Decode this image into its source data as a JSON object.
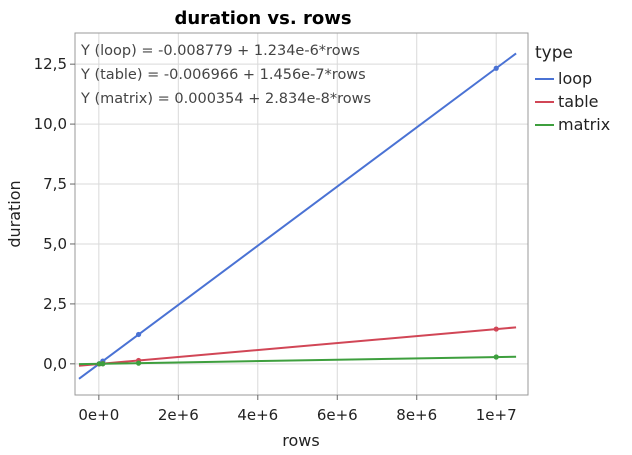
{
  "chart_data": {
    "type": "scatter",
    "title": "duration vs. rows",
    "xlabel": "rows",
    "ylabel": "duration",
    "xlim": [
      -600000,
      10800000
    ],
    "ylim": [
      -1.3,
      13.8
    ],
    "x_ticks": [
      0,
      2000000,
      4000000,
      6000000,
      8000000,
      10000000
    ],
    "x_tick_labels": [
      "0e+0",
      "2e+6",
      "4e+6",
      "6e+6",
      "8e+6",
      "1e+7"
    ],
    "y_ticks": [
      0,
      2.5,
      5,
      7.5,
      10,
      12.5
    ],
    "y_tick_labels": [
      "0,0",
      "2,5",
      "5,0",
      "7,5",
      "10,0",
      "12,5"
    ],
    "grid": true,
    "legend": {
      "title": "type",
      "position": "right"
    },
    "fit_range": [
      -500000,
      10500000
    ],
    "series": [
      {
        "name": "loop",
        "color": "#4a72d4",
        "x": [
          10000,
          100000,
          1000000,
          10000000
        ],
        "y": [
          0.003,
          0.115,
          1.225,
          12.33
        ],
        "intercept": -0.008779,
        "slope": 1.234e-06,
        "equation": "Y (loop) = -0.008779 + 1.234e-6*rows"
      },
      {
        "name": "table",
        "color": "#d14656",
        "x": [
          10000,
          100000,
          1000000,
          10000000
        ],
        "y": [
          -0.005,
          0.008,
          0.139,
          1.45
        ],
        "intercept": -0.006966,
        "slope": 1.456e-07,
        "equation": "Y (table) = -0.006966 + 1.456e-7*rows"
      },
      {
        "name": "matrix",
        "color": "#3e9f3e",
        "x": [
          10000,
          100000,
          1000000,
          10000000
        ],
        "y": [
          0.001,
          0.003,
          0.029,
          0.284
        ],
        "intercept": 0.000354,
        "slope": 2.834e-08,
        "equation": "Y (matrix) = 0.000354 + 2.834e-8*rows"
      }
    ]
  }
}
